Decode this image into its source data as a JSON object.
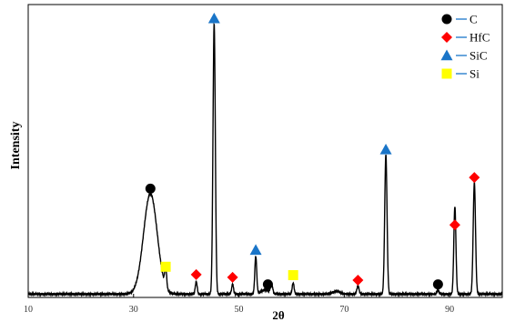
{
  "chart_data": {
    "type": "line",
    "title": "",
    "xlabel": "2θ",
    "ylabel": "Intensity",
    "xlim": [
      10,
      100
    ],
    "ylim": [
      0,
      105
    ],
    "grid": false,
    "legend_position": "top-right",
    "x_ticks": [
      "10",
      "30",
      "50",
      "70",
      "90"
    ],
    "x_tick_values": [
      10,
      30,
      50,
      70,
      90
    ],
    "pattern": {
      "baseline": 1.2,
      "peaks": [
        {
          "x": 33.2,
          "height": 36,
          "width": 1.3
        },
        {
          "x": 36.1,
          "height": 7,
          "width": 0.18
        },
        {
          "x": 41.9,
          "height": 4.5,
          "width": 0.18
        },
        {
          "x": 45.3,
          "height": 97,
          "width": 0.22
        },
        {
          "x": 48.8,
          "height": 3.5,
          "width": 0.18
        },
        {
          "x": 53.2,
          "height": 13.5,
          "width": 0.18
        },
        {
          "x": 55.0,
          "height": 1.5,
          "width": 0.8
        },
        {
          "x": 56.2,
          "height": 3.5,
          "width": 0.2
        },
        {
          "x": 60.3,
          "height": 4,
          "width": 0.18
        },
        {
          "x": 68.5,
          "height": 1.0,
          "width": 0.7
        },
        {
          "x": 72.6,
          "height": 3.0,
          "width": 0.2
        },
        {
          "x": 77.9,
          "height": 50,
          "width": 0.22
        },
        {
          "x": 87.8,
          "height": 1.5,
          "width": 0.18
        },
        {
          "x": 91.0,
          "height": 31.5,
          "width": 0.2
        },
        {
          "x": 94.7,
          "height": 40,
          "width": 0.22
        }
      ]
    },
    "series": [
      {
        "name": "C",
        "marker": "circle",
        "color": "#000000",
        "points": [
          {
            "x": 33.2,
            "y": 39
          },
          {
            "x": 55.5,
            "y": 4.7
          },
          {
            "x": 87.8,
            "y": 4.7
          }
        ]
      },
      {
        "name": "HfC",
        "marker": "diamond",
        "color": "#ff0000",
        "points": [
          {
            "x": 41.9,
            "y": 8.2
          },
          {
            "x": 48.8,
            "y": 7.2
          },
          {
            "x": 72.6,
            "y": 6.2
          },
          {
            "x": 91.0,
            "y": 26
          },
          {
            "x": 94.7,
            "y": 43
          }
        ]
      },
      {
        "name": "SiC",
        "marker": "triangle",
        "color": "#1a75c8",
        "points": [
          {
            "x": 45.3,
            "y": 100
          },
          {
            "x": 53.2,
            "y": 17
          },
          {
            "x": 77.9,
            "y": 53
          }
        ]
      },
      {
        "name": "Si",
        "marker": "square",
        "color": "#ffff00",
        "points": [
          {
            "x": 36.1,
            "y": 11
          },
          {
            "x": 60.3,
            "y": 8
          }
        ]
      }
    ]
  }
}
